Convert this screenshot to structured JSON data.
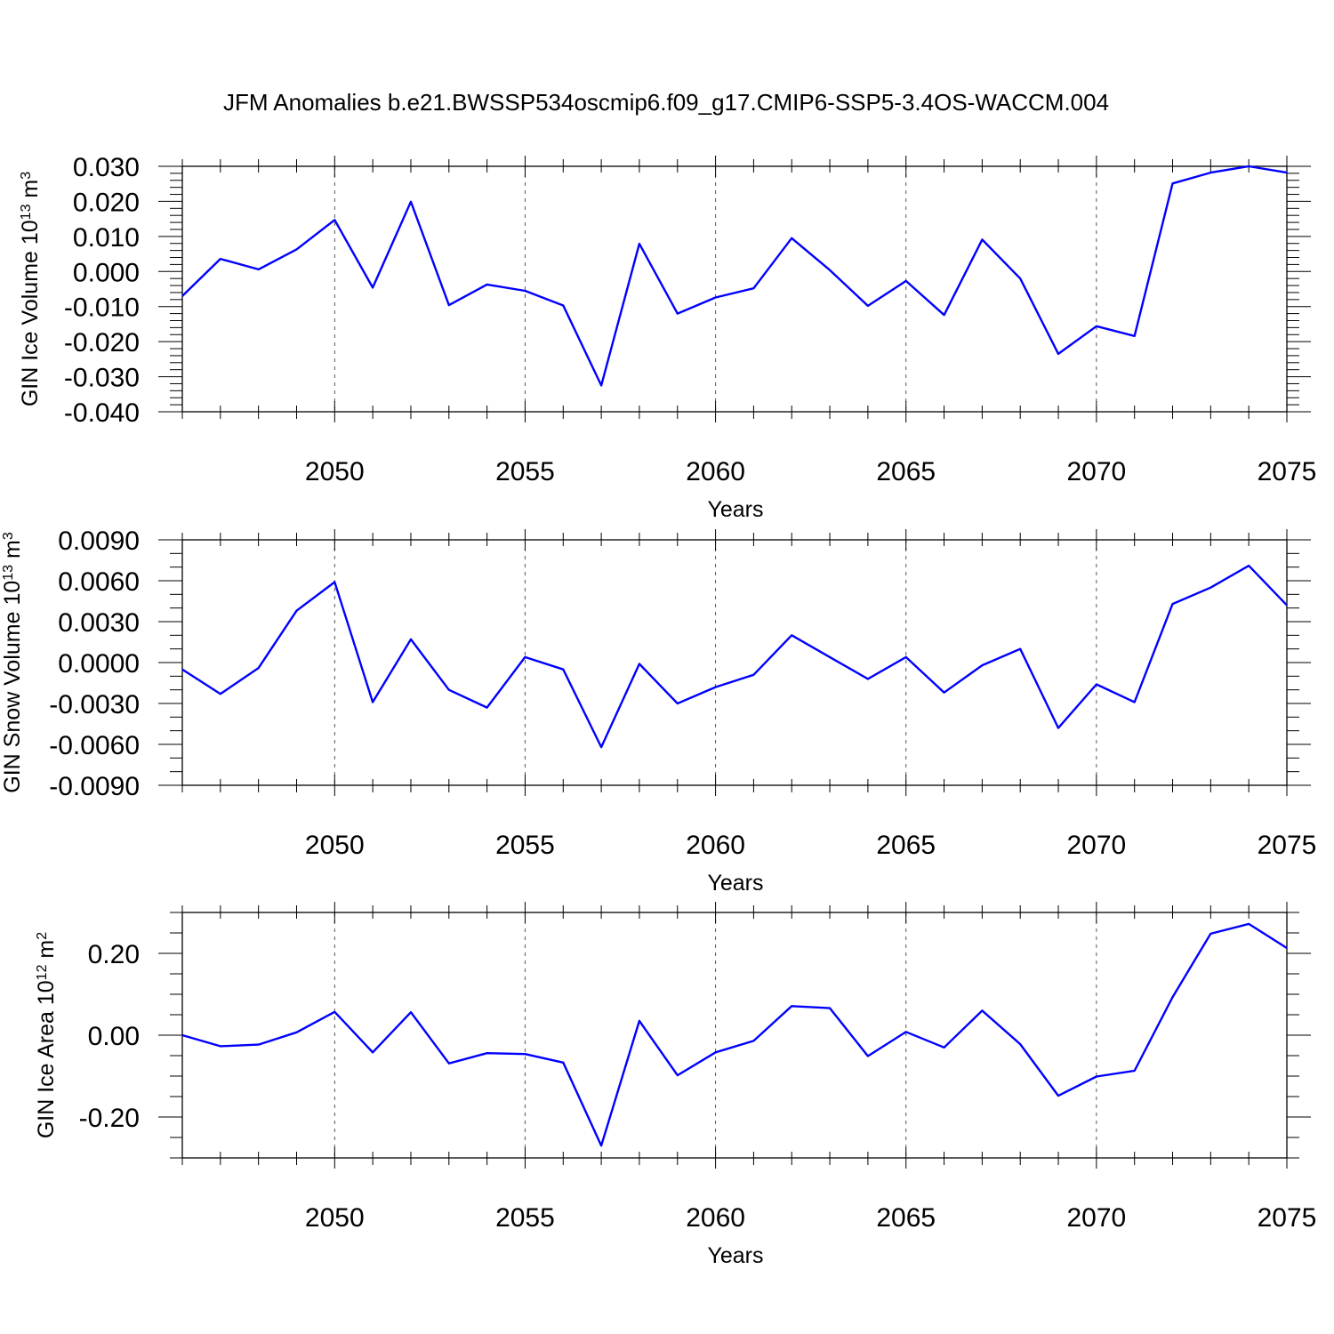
{
  "title": "JFM Anomalies b.e21.BWSSP534oscmip6.f09_g17.CMIP6-SSP5-3.4OS-WACCM.004",
  "colors": {
    "line": "#0000ff",
    "axes": "#000000",
    "grid": "#555555"
  },
  "chart_data": [
    {
      "type": "line",
      "title": "",
      "xlabel": "Years",
      "ylabel_main": "GIN Ice Volume 10",
      "ylabel_exp": "13",
      "ylabel_unit": " m",
      "ylabel_unit_exp": "3",
      "xlim": [
        2046,
        2075
      ],
      "ylim": [
        -0.04,
        0.03
      ],
      "x_ticks": [
        2050,
        2055,
        2060,
        2065,
        2070,
        2075
      ],
      "y_ticks": [
        "-0.040",
        "-0.030",
        "-0.020",
        "-0.010",
        "0.000",
        "0.010",
        "0.020",
        "0.030"
      ],
      "grid": "vertical dashed at major x ticks",
      "series": [
        {
          "x": [
            2046,
            2047,
            2048,
            2049,
            2050,
            2051,
            2052,
            2053,
            2054,
            2055,
            2056,
            2057,
            2058,
            2059,
            2060,
            2061,
            2062,
            2063,
            2064,
            2065,
            2066,
            2067,
            2068,
            2069,
            2070,
            2071,
            2072,
            2073,
            2074,
            2075
          ],
          "y": [
            -0.007,
            0.0036,
            0.0006,
            0.0063,
            0.0147,
            -0.0046,
            0.0199,
            -0.0096,
            -0.0037,
            -0.0055,
            -0.0097,
            -0.0325,
            0.0079,
            -0.012,
            -0.0074,
            -0.0048,
            0.0095,
            0.0004,
            -0.0098,
            -0.0027,
            -0.0124,
            0.0091,
            -0.002,
            -0.0235,
            -0.0156,
            -0.0184,
            0.0251,
            0.0282,
            0.03,
            0.0282
          ]
        }
      ]
    },
    {
      "type": "line",
      "title": "",
      "xlabel": "Years",
      "ylabel_main": "GIN Snow Volume 10",
      "ylabel_exp": "13",
      "ylabel_unit": " m",
      "ylabel_unit_exp": "3",
      "xlim": [
        2046,
        2075
      ],
      "ylim": [
        -0.009,
        0.009
      ],
      "x_ticks": [
        2050,
        2055,
        2060,
        2065,
        2070,
        2075
      ],
      "y_ticks": [
        "-0.0090",
        "-0.0060",
        "-0.0030",
        "0.0000",
        "0.0030",
        "0.0060",
        "0.0090"
      ],
      "grid": "vertical dashed at major x ticks",
      "series": [
        {
          "x": [
            2046,
            2047,
            2048,
            2049,
            2050,
            2051,
            2052,
            2053,
            2054,
            2055,
            2056,
            2057,
            2058,
            2059,
            2060,
            2061,
            2062,
            2063,
            2064,
            2065,
            2066,
            2067,
            2068,
            2069,
            2070,
            2071,
            2072,
            2073,
            2074,
            2075
          ],
          "y": [
            -0.0005,
            -0.0023,
            -0.0004,
            0.0038,
            0.0059,
            -0.0029,
            0.0017,
            -0.002,
            -0.0033,
            0.0004,
            -0.0005,
            -0.0062,
            -0.0001,
            -0.003,
            -0.0018,
            -0.0009,
            0.002,
            0.0004,
            -0.0012,
            0.0004,
            -0.0022,
            -0.0002,
            0.001,
            -0.0048,
            -0.0016,
            -0.0029,
            0.0043,
            0.0055,
            0.0071,
            0.0042
          ]
        }
      ]
    },
    {
      "type": "line",
      "title": "",
      "xlabel": "Years",
      "ylabel_main": "GIN Ice Area 10",
      "ylabel_exp": "12",
      "ylabel_unit": " m",
      "ylabel_unit_exp": "2",
      "xlim": [
        2046,
        2075
      ],
      "ylim": [
        -0.3,
        0.3
      ],
      "x_ticks": [
        2050,
        2055,
        2060,
        2065,
        2070,
        2075
      ],
      "y_ticks": [
        "-0.20",
        "0.00",
        "0.20"
      ],
      "y_tick_values": [
        -0.2,
        0.0,
        0.2
      ],
      "grid": "vertical dashed at major x ticks",
      "series": [
        {
          "x": [
            2046,
            2047,
            2048,
            2049,
            2050,
            2051,
            2052,
            2053,
            2054,
            2055,
            2056,
            2057,
            2058,
            2059,
            2060,
            2061,
            2062,
            2063,
            2064,
            2065,
            2066,
            2067,
            2068,
            2069,
            2070,
            2071,
            2072,
            2073,
            2074,
            2075
          ],
          "y": [
            0.0,
            -0.027,
            -0.023,
            0.007,
            0.057,
            -0.042,
            0.056,
            -0.069,
            -0.044,
            -0.046,
            -0.067,
            -0.27,
            0.035,
            -0.098,
            -0.042,
            -0.014,
            0.071,
            0.066,
            -0.051,
            0.008,
            -0.03,
            0.06,
            -0.022,
            -0.148,
            -0.101,
            -0.087,
            0.093,
            0.248,
            0.272,
            0.213
          ]
        }
      ]
    }
  ]
}
